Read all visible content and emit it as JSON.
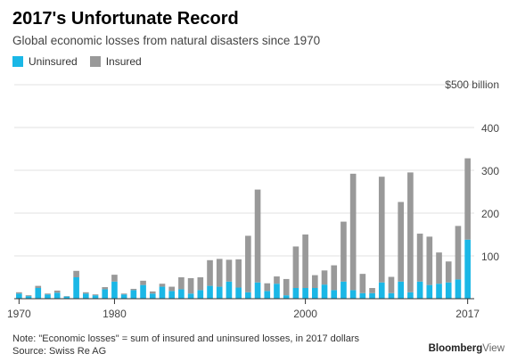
{
  "title": "2017's Unfortunate Record",
  "subtitle": "Global economic losses from natural disasters since 1970",
  "legend": {
    "uninsured_label": "Uninsured",
    "insured_label": "Insured"
  },
  "colors": {
    "uninsured": "#1ab7e6",
    "insured": "#999999",
    "grid": "#e2e2e2",
    "axis": "#333333"
  },
  "note": "Note: \"Economic losses\" = sum of insured and uninsured losses, in 2017 dollars",
  "source": "Source: Swiss Re AG",
  "brand": {
    "name": "Bloomberg",
    "suffix": "View"
  },
  "chart_data": {
    "type": "bar",
    "stacked": true,
    "title": "2017's Unfortunate Record",
    "subtitle": "Global economic losses from natural disasters since 1970",
    "xlabel": "",
    "ylabel": "",
    "ylim": [
      0,
      500
    ],
    "y_ticks": [
      100,
      200,
      300,
      400,
      500
    ],
    "y_tick_labels": [
      "100",
      "200",
      "300",
      "400",
      "$500 billion"
    ],
    "x_tick_labels": [
      "1970",
      "1980",
      "2000",
      "2017"
    ],
    "grid": true,
    "legend_position": "top-left",
    "categories": [
      1970,
      1971,
      1972,
      1973,
      1974,
      1975,
      1976,
      1977,
      1978,
      1979,
      1980,
      1981,
      1982,
      1983,
      1984,
      1985,
      1986,
      1987,
      1988,
      1989,
      1990,
      1991,
      1992,
      1993,
      1994,
      1995,
      1996,
      1997,
      1998,
      1999,
      2000,
      2001,
      2002,
      2003,
      2004,
      2005,
      2006,
      2007,
      2008,
      2009,
      2010,
      2011,
      2012,
      2013,
      2014,
      2015,
      2016,
      2017
    ],
    "series": [
      {
        "name": "Uninsured",
        "values": [
          12,
          6,
          25,
          10,
          14,
          5,
          50,
          12,
          8,
          22,
          40,
          10,
          20,
          32,
          12,
          28,
          18,
          22,
          12,
          20,
          30,
          28,
          40,
          26,
          15,
          38,
          18,
          35,
          8,
          25,
          25,
          25,
          33,
          20,
          40,
          20,
          13,
          13,
          38,
          13,
          40,
          15,
          40,
          32,
          35,
          38,
          45,
          138
        ]
      },
      {
        "name": "Insured",
        "values": [
          3,
          2,
          5,
          2,
          5,
          1,
          15,
          3,
          2,
          5,
          16,
          2,
          3,
          10,
          5,
          7,
          10,
          28,
          36,
          30,
          60,
          65,
          51,
          66,
          132,
          217,
          18,
          17,
          38,
          97,
          125,
          30,
          33,
          58,
          140,
          272,
          45,
          12,
          247,
          38,
          186,
          280,
          112,
          113,
          73,
          49,
          125,
          190
        ]
      }
    ]
  }
}
